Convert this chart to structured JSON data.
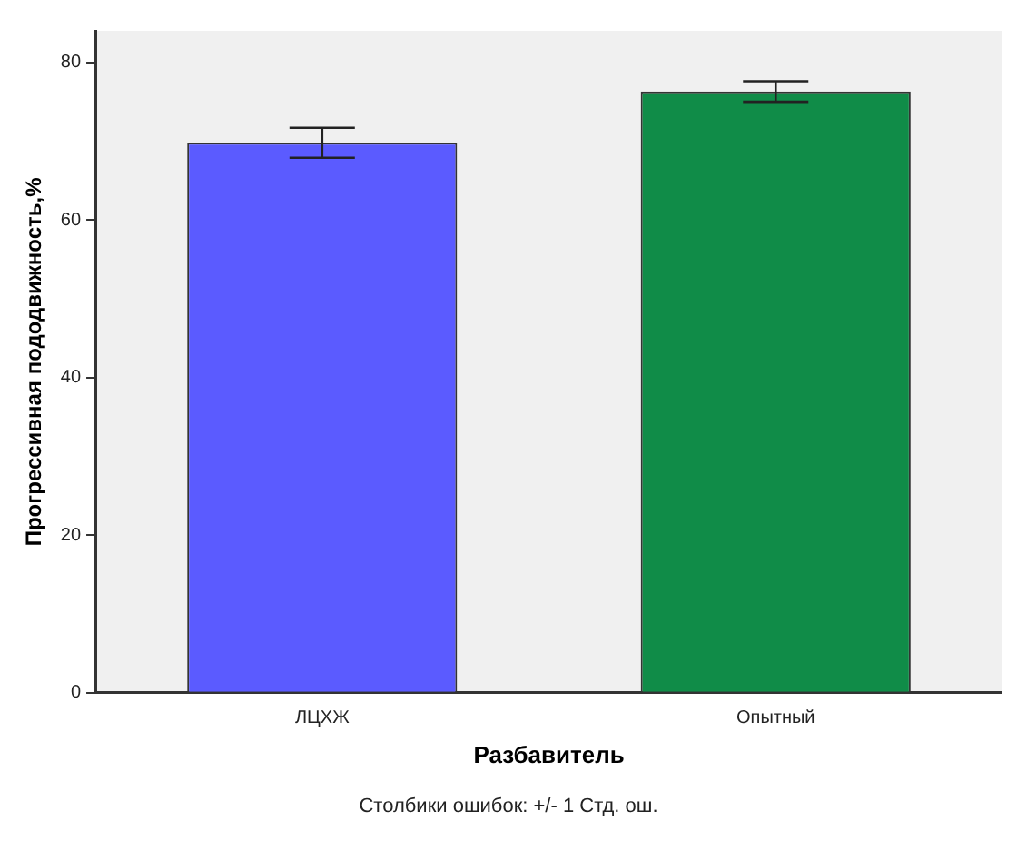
{
  "chart_data": {
    "type": "bar",
    "xlabel": "Разбавитель",
    "ylabel": "Прогрессивная пододвижность,%",
    "categories": [
      "ЛЦХЖ",
      "Опытный"
    ],
    "series": [
      {
        "colors": [
          "#5b5bff",
          "#108c48"
        ],
        "values": [
          69.8,
          76.3
        ],
        "errors": [
          1.9,
          1.3
        ]
      }
    ],
    "ylim": [
      0,
      84
    ],
    "yticks": [
      0,
      20,
      40,
      60,
      80
    ],
    "grid": false,
    "legend": false,
    "annotations": [
      "Столбики ошибок: +/- 1 Стд. ош."
    ]
  }
}
